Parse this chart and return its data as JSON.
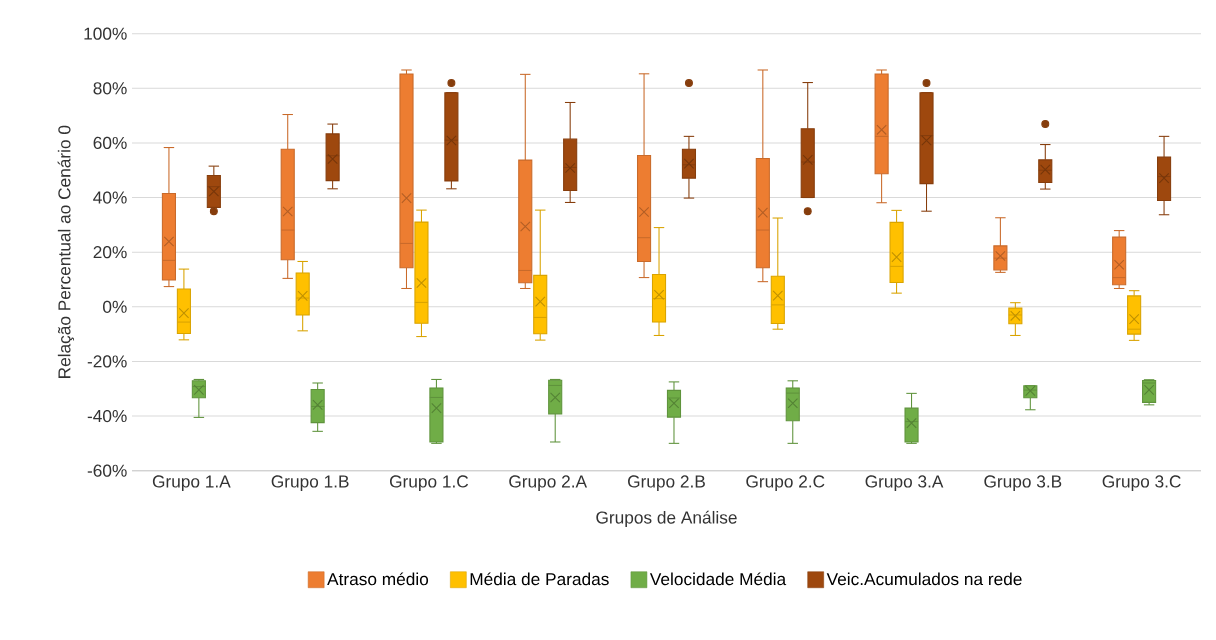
{
  "chart_data": {
    "type": "box",
    "xlabel": "Grupos de Análise",
    "ylabel": "Relação Percentual ao Cenário 0",
    "categories": [
      "Grupo 1.A",
      "Grupo 1.B",
      "Grupo 1.C",
      "Grupo 2.A",
      "Grupo 2.B",
      "Grupo 2.C",
      "Grupo 3.A",
      "Grupo 3.B",
      "Grupo 3.C"
    ],
    "ylim": [
      -60,
      100
    ],
    "yticks": [
      {
        "value": -60,
        "label": "-60%"
      },
      {
        "value": -40,
        "label": "-40%"
      },
      {
        "value": -20,
        "label": "-20%"
      },
      {
        "value": 0,
        "label": "0%"
      },
      {
        "value": 20,
        "label": "20%"
      },
      {
        "value": 40,
        "label": "40%"
      },
      {
        "value": 60,
        "label": "60%"
      },
      {
        "value": 80,
        "label": "80%"
      },
      {
        "value": 100,
        "label": "100%"
      }
    ],
    "grid": "y",
    "legend": "bottom",
    "series": [
      {
        "name": "Atraso médio",
        "color": "#ed7d31",
        "boxes": [
          {
            "low": 7.4,
            "q1": 9.8,
            "median": 17.0,
            "q3": 41.5,
            "high": 58.3,
            "mean": 23.9
          },
          {
            "low": 10.4,
            "q1": 17.2,
            "median": 28.1,
            "q3": 57.7,
            "high": 70.4,
            "mean": 34.9
          },
          {
            "low": 6.7,
            "q1": 14.3,
            "median": 23.2,
            "q3": 85.2,
            "high": 86.7,
            "mean": 39.8
          },
          {
            "low": 6.7,
            "q1": 8.8,
            "median": 13.3,
            "q3": 53.7,
            "high": 85.1,
            "mean": 29.4
          },
          {
            "low": 10.7,
            "q1": 16.6,
            "median": 25.3,
            "q3": 55.4,
            "high": 85.3,
            "mean": 34.7
          },
          {
            "low": 9.2,
            "q1": 14.3,
            "median": 28.1,
            "q3": 54.3,
            "high": 86.7,
            "mean": 34.5
          },
          {
            "low": 38.1,
            "q1": 48.7,
            "median": 62.4,
            "q3": 85.2,
            "high": 86.7,
            "mean": 64.8
          },
          {
            "low": 12.6,
            "q1": 13.5,
            "median": 17.8,
            "q3": 22.3,
            "high": 32.6,
            "mean": 18.6
          },
          {
            "low": 6.7,
            "q1": 8.1,
            "median": 10.7,
            "q3": 25.5,
            "high": 27.9,
            "mean": 15.4
          }
        ]
      },
      {
        "name": "Média de Paradas",
        "color": "#ffc000",
        "boxes": [
          {
            "low": -12.1,
            "q1": -9.8,
            "median": -5.6,
            "q3": 6.5,
            "high": 13.8,
            "mean": -2.3
          },
          {
            "low": -8.8,
            "q1": -3.0,
            "median": 3.2,
            "q3": 12.4,
            "high": 16.6,
            "mean": 4.0
          },
          {
            "low": -10.9,
            "q1": -6.0,
            "median": 1.6,
            "q3": 31.0,
            "high": 35.4,
            "mean": 8.7
          },
          {
            "low": -12.2,
            "q1": -9.9,
            "median": -3.9,
            "q3": 11.5,
            "high": 35.4,
            "mean": 1.9
          },
          {
            "low": -10.5,
            "q1": -5.6,
            "median": 3.0,
            "q3": 11.8,
            "high": 29.0,
            "mean": 4.4
          },
          {
            "low": -8.2,
            "q1": -6.1,
            "median": 0.7,
            "q3": 11.2,
            "high": 32.5,
            "mean": 4.1
          },
          {
            "low": 5.0,
            "q1": 8.9,
            "median": 14.8,
            "q3": 30.9,
            "high": 35.3,
            "mean": 18.2
          },
          {
            "low": -10.5,
            "q1": -6.2,
            "median": -3.0,
            "q3": -0.5,
            "high": 1.5,
            "mean": -3.3
          },
          {
            "low": -12.3,
            "q1": -10.0,
            "median": -8.2,
            "q3": 4.0,
            "high": 5.9,
            "mean": -4.5
          }
        ]
      },
      {
        "name": "Velocidade Média",
        "color": "#70ad47",
        "boxes": [
          {
            "low": -40.5,
            "q1": -33.3,
            "median": -29.2,
            "q3": -27.1,
            "high": -26.6,
            "mean": -30.4
          },
          {
            "low": -45.6,
            "q1": -42.4,
            "median": -36.5,
            "q3": -30.3,
            "high": -27.9,
            "mean": -35.9
          },
          {
            "low": -50.0,
            "q1": -49.5,
            "median": -33.2,
            "q3": -29.7,
            "high": -26.6,
            "mean": -37.1
          },
          {
            "low": -49.5,
            "q1": -39.2,
            "median": -28.8,
            "q3": -26.9,
            "high": -26.6,
            "mean": -33.2
          },
          {
            "low": -50.0,
            "q1": -40.4,
            "median": -33.4,
            "q3": -30.6,
            "high": -27.5,
            "mean": -35.3
          },
          {
            "low": -50.0,
            "q1": -41.7,
            "median": -31.6,
            "q3": -29.7,
            "high": -27.1,
            "mean": -35.3
          },
          {
            "low": -50.0,
            "q1": -49.5,
            "median": -42.0,
            "q3": -37.1,
            "high": -31.7,
            "mean": -42.6
          },
          {
            "low": -37.7,
            "q1": -33.3,
            "median": -30.5,
            "q3": -28.9,
            "high": -28.9,
            "mean": -30.8
          },
          {
            "low": -35.9,
            "q1": -35.0,
            "median": -27.9,
            "q3": -27.0,
            "high": -26.7,
            "mean": -30.4
          }
        ]
      },
      {
        "name": "Veic.Acumulados na rede",
        "color": "#9e480e",
        "boxes": [
          {
            "low": 36.4,
            "q1": 36.4,
            "median": 44.0,
            "q3": 48.1,
            "high": 51.5,
            "mean": 42.2,
            "outliers": [
              35.0
            ]
          },
          {
            "low": 43.2,
            "q1": 46.2,
            "median": 55.3,
            "q3": 63.3,
            "high": 66.9,
            "mean": 54.1
          },
          {
            "low": 43.2,
            "q1": 46.1,
            "median": 61.0,
            "q3": 78.4,
            "high": 78.4,
            "mean": 60.9,
            "outliers": [
              81.9
            ]
          },
          {
            "low": 38.2,
            "q1": 42.6,
            "median": 51.0,
            "q3": 61.4,
            "high": 74.8,
            "mean": 50.8
          },
          {
            "low": 39.8,
            "q1": 47.1,
            "median": 52.0,
            "q3": 57.7,
            "high": 62.4,
            "mean": 52.4,
            "outliers": [
              81.9
            ]
          },
          {
            "low": 40.0,
            "q1": 40.0,
            "median": 53.0,
            "q3": 65.2,
            "high": 82.1,
            "mean": 53.8,
            "outliers": [
              35.0
            ]
          },
          {
            "low": 35.0,
            "q1": 45.1,
            "median": 62.7,
            "q3": 78.4,
            "high": 78.4,
            "mean": 60.9,
            "outliers": [
              81.9
            ]
          },
          {
            "low": 43.1,
            "q1": 45.5,
            "median": 50.0,
            "q3": 53.8,
            "high": 59.4,
            "mean": 50.2,
            "outliers": [
              66.9
            ]
          },
          {
            "low": 33.7,
            "q1": 38.9,
            "median": 47.7,
            "q3": 54.8,
            "high": 62.4,
            "mean": 47.1
          }
        ]
      }
    ]
  }
}
